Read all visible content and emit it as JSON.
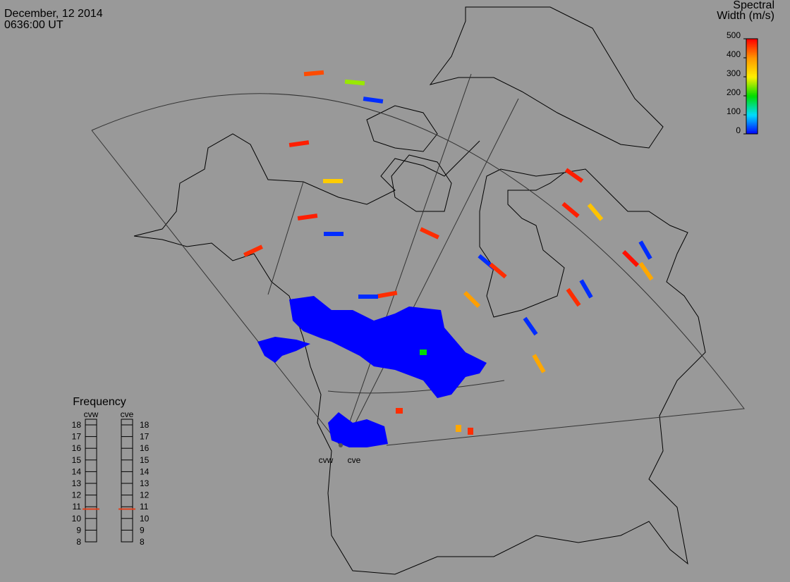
{
  "header": {
    "date": "December, 12 2014",
    "time": "0636:00 UT"
  },
  "colorbar": {
    "title": [
      "Spectral",
      "Width (m/s)"
    ],
    "ticks": [
      0,
      100,
      200,
      300,
      400,
      500
    ]
  },
  "frequency": {
    "title": "Frequency",
    "radars": [
      {
        "name": "cvw",
        "value": 10.8
      },
      {
        "name": "cve",
        "value": 10.8
      }
    ],
    "ticks": [
      8,
      9,
      10,
      11,
      12,
      13,
      14,
      15,
      16,
      17,
      18
    ]
  },
  "sites": [
    "cvw",
    "cve"
  ],
  "echoes": [
    450,
    260,
    20,
    480,
    340,
    480,
    20,
    470,
    470,
    480,
    480,
    350,
    490,
    20,
    380,
    20,
    470,
    20,
    470,
    390,
    20,
    380,
    470,
    20,
    0,
    0,
    0,
    470,
    380,
    470,
    200
  ]
}
